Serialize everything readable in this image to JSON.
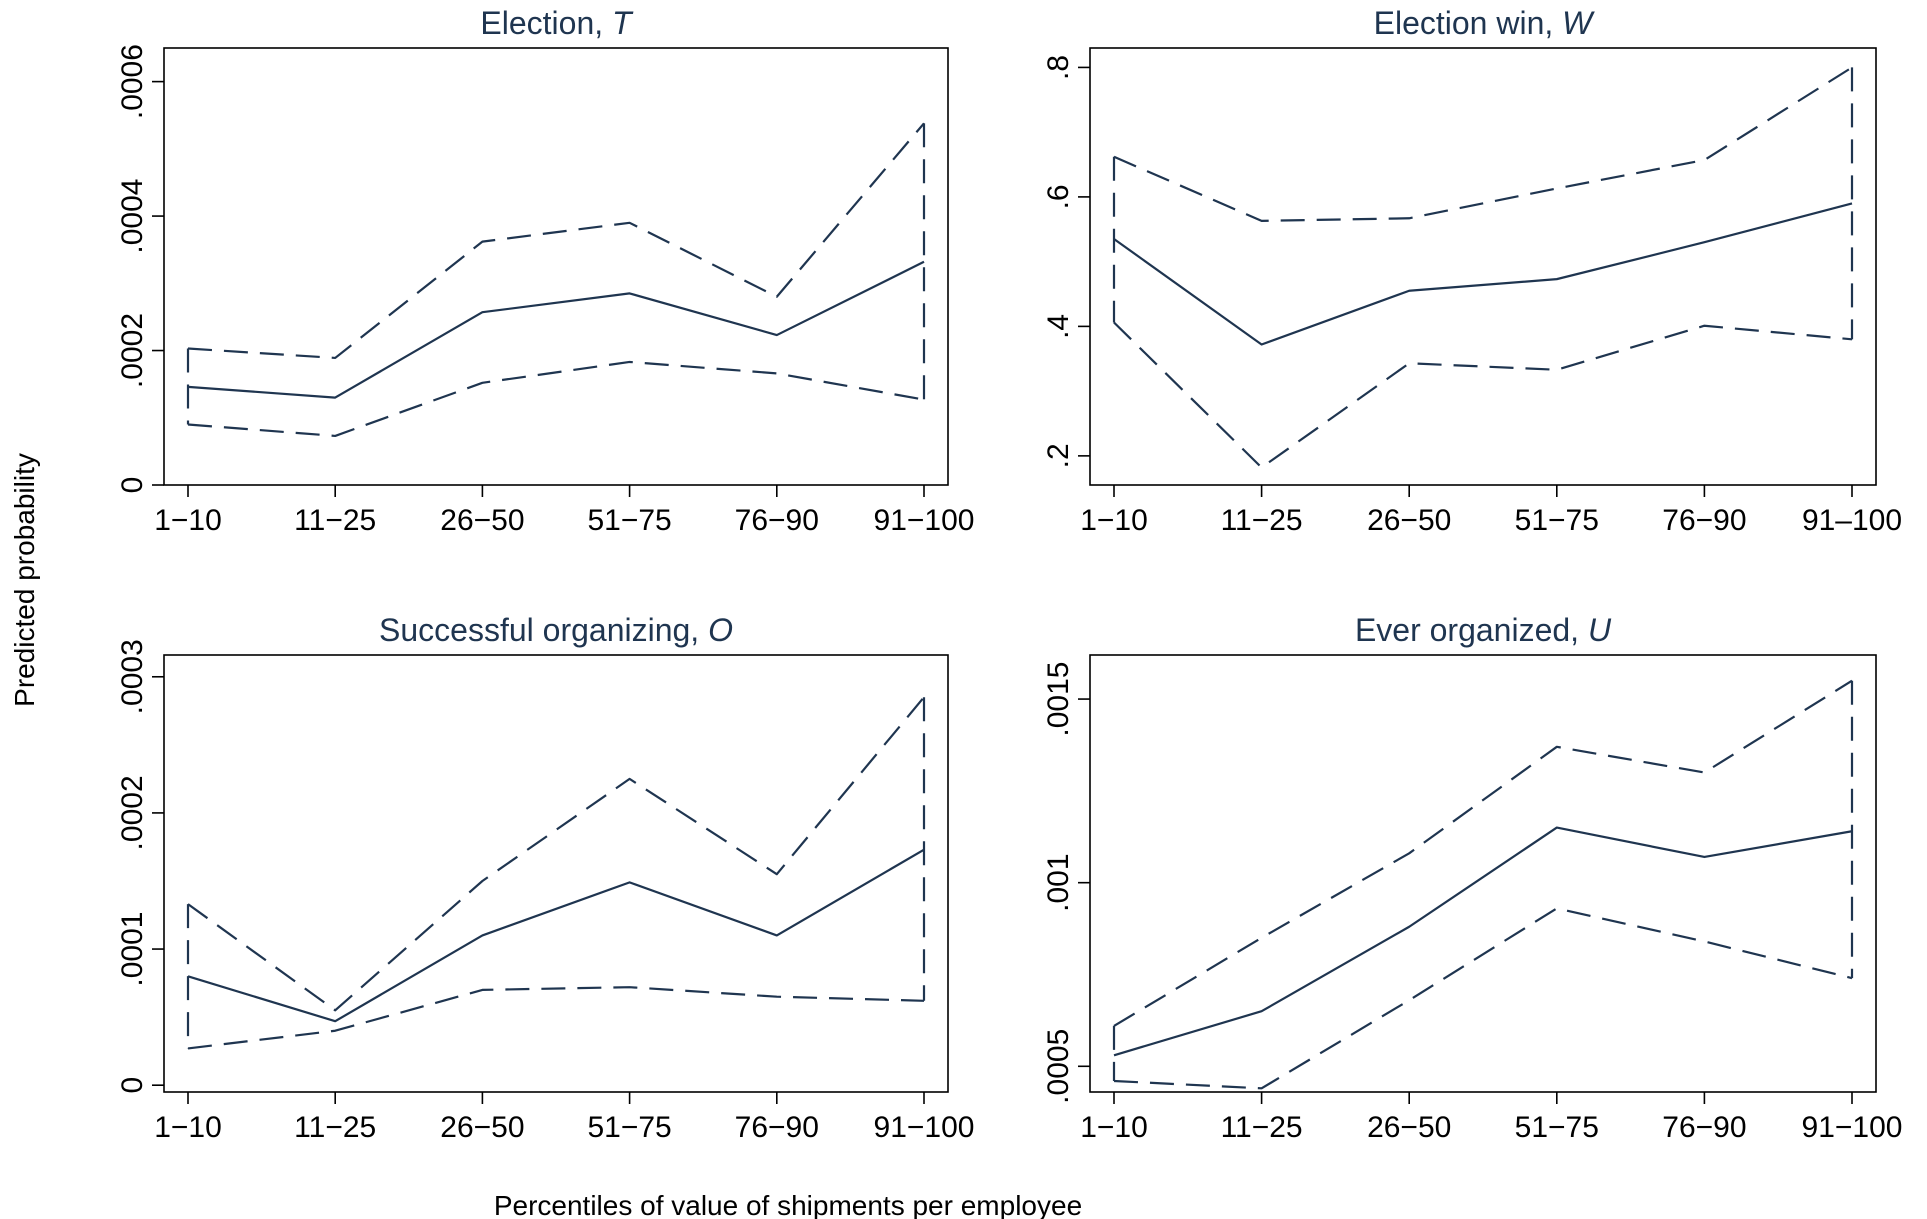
{
  "figure": {
    "ylabel": "Predicted probability",
    "xlabel": "Percentiles of value of shipments per employee"
  },
  "chart_data": [
    {
      "type": "line",
      "title": "Election, ",
      "title_var": "T",
      "categories": [
        "1−10",
        "11−25",
        "26−50",
        "51−75",
        "76−90",
        "91−100"
      ],
      "ylim": [
        0,
        0.00065
      ],
      "yticks": [
        0,
        0.0002,
        0.0004,
        0.0006
      ],
      "ytick_labels": [
        "0",
        ".0002",
        ".0004",
        ".0006"
      ],
      "grid": false,
      "series": [
        {
          "style": "solid",
          "values": [
            0.000146,
            0.00013,
            0.000257,
            0.000285,
            0.000223,
            0.000332
          ]
        },
        {
          "style": "dashed",
          "values": [
            0.000203,
            0.000189,
            0.000362,
            0.00039,
            0.00028,
            0.000538
          ]
        },
        {
          "style": "dashed",
          "values": [
            9e-05,
            7.3e-05,
            0.000152,
            0.000183,
            0.000166,
            0.000127
          ]
        }
      ]
    },
    {
      "type": "line",
      "title": "Election win, ",
      "title_var": "W",
      "categories": [
        "1−10",
        "11−25",
        "26−50",
        "51−75",
        "76−90",
        "91‒100"
      ],
      "ylim": [
        0.155,
        0.83
      ],
      "yticks": [
        0.2,
        0.4,
        0.6,
        0.8
      ],
      "ytick_labels": [
        ".2",
        ".4",
        ".6",
        ".8"
      ],
      "grid": false,
      "series": [
        {
          "style": "solid",
          "values": [
            0.535,
            0.372,
            0.455,
            0.473,
            0.53,
            0.59
          ]
        },
        {
          "style": "dashed",
          "values": [
            0.662,
            0.563,
            0.567,
            0.613,
            0.657,
            0.8
          ]
        },
        {
          "style": "dashed",
          "values": [
            0.406,
            0.182,
            0.343,
            0.333,
            0.401,
            0.38
          ]
        }
      ]
    },
    {
      "type": "line",
      "title": "Successful organizing, ",
      "title_var": "O",
      "categories": [
        "1−10",
        "11−25",
        "26−50",
        "51−75",
        "76−90",
        "91−100"
      ],
      "ylim": [
        -5e-06,
        0.000316
      ],
      "yticks": [
        0,
        0.0001,
        0.0002,
        0.0003
      ],
      "ytick_labels": [
        "0",
        ".0001",
        ".0002",
        ".0003"
      ],
      "grid": false,
      "series": [
        {
          "style": "solid",
          "values": [
            8e-05,
            4.7e-05,
            0.00011,
            0.000149,
            0.00011,
            0.000173
          ]
        },
        {
          "style": "dashed",
          "values": [
            0.000133,
            5.5e-05,
            0.00015,
            0.000225,
            0.000155,
            0.000285
          ]
        },
        {
          "style": "dashed",
          "values": [
            2.7e-05,
            4e-05,
            7e-05,
            7.2e-05,
            6.5e-05,
            6.2e-05
          ]
        }
      ]
    },
    {
      "type": "line",
      "title": "Ever organized, ",
      "title_var": "U",
      "categories": [
        "1−10",
        "11−25",
        "26−50",
        "51−75",
        "76−90",
        "91−100"
      ],
      "ylim": [
        0.00043,
        0.00162
      ],
      "yticks": [
        0.0005,
        0.001,
        0.0015
      ],
      "ytick_labels": [
        ".0005",
        ".001",
        ".0015"
      ],
      "grid": false,
      "series": [
        {
          "style": "solid",
          "values": [
            0.00053,
            0.00065,
            0.00088,
            0.00115,
            0.00107,
            0.00114
          ]
        },
        {
          "style": "dashed",
          "values": [
            0.00061,
            0.00085,
            0.00108,
            0.00137,
            0.0013,
            0.00155
          ]
        },
        {
          "style": "dashed",
          "values": [
            0.00046,
            0.00044,
            0.00068,
            0.00093,
            0.00084,
            0.00074
          ]
        }
      ]
    }
  ]
}
